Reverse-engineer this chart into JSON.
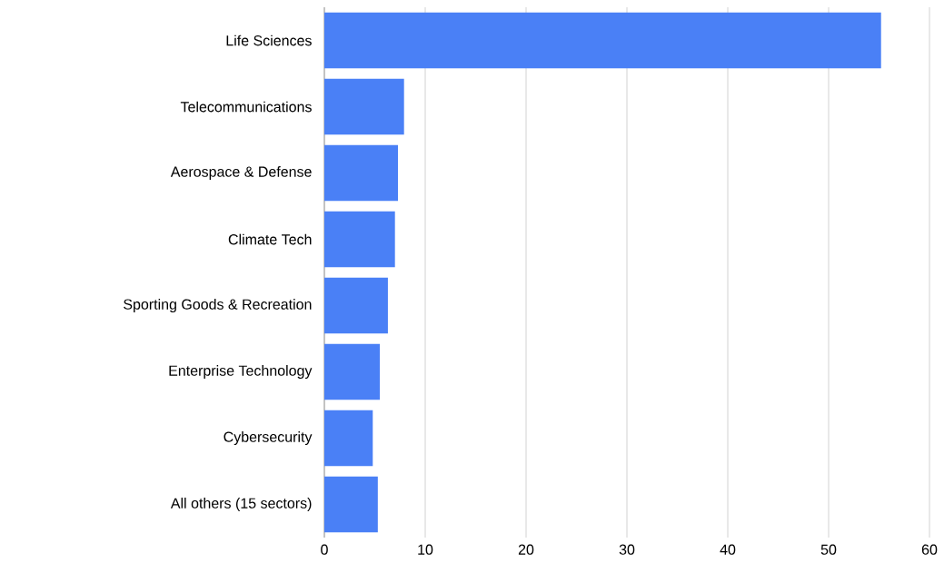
{
  "chart_data": {
    "type": "bar",
    "orientation": "horizontal",
    "categories": [
      "Life Sciences",
      "Telecommunications",
      "Aerospace & Defense",
      "Climate Tech",
      "Sporting Goods & Recreation",
      "Enterprise Technology",
      "Cybersecurity",
      "All others (15 sectors)"
    ],
    "values": [
      55.2,
      7.9,
      7.3,
      7.0,
      6.3,
      5.5,
      4.8,
      5.3
    ],
    "color": "#4a80f6",
    "xlim": [
      0,
      60
    ],
    "xticks": [
      0,
      10,
      20,
      30,
      40,
      50,
      60
    ],
    "grid": "x"
  }
}
